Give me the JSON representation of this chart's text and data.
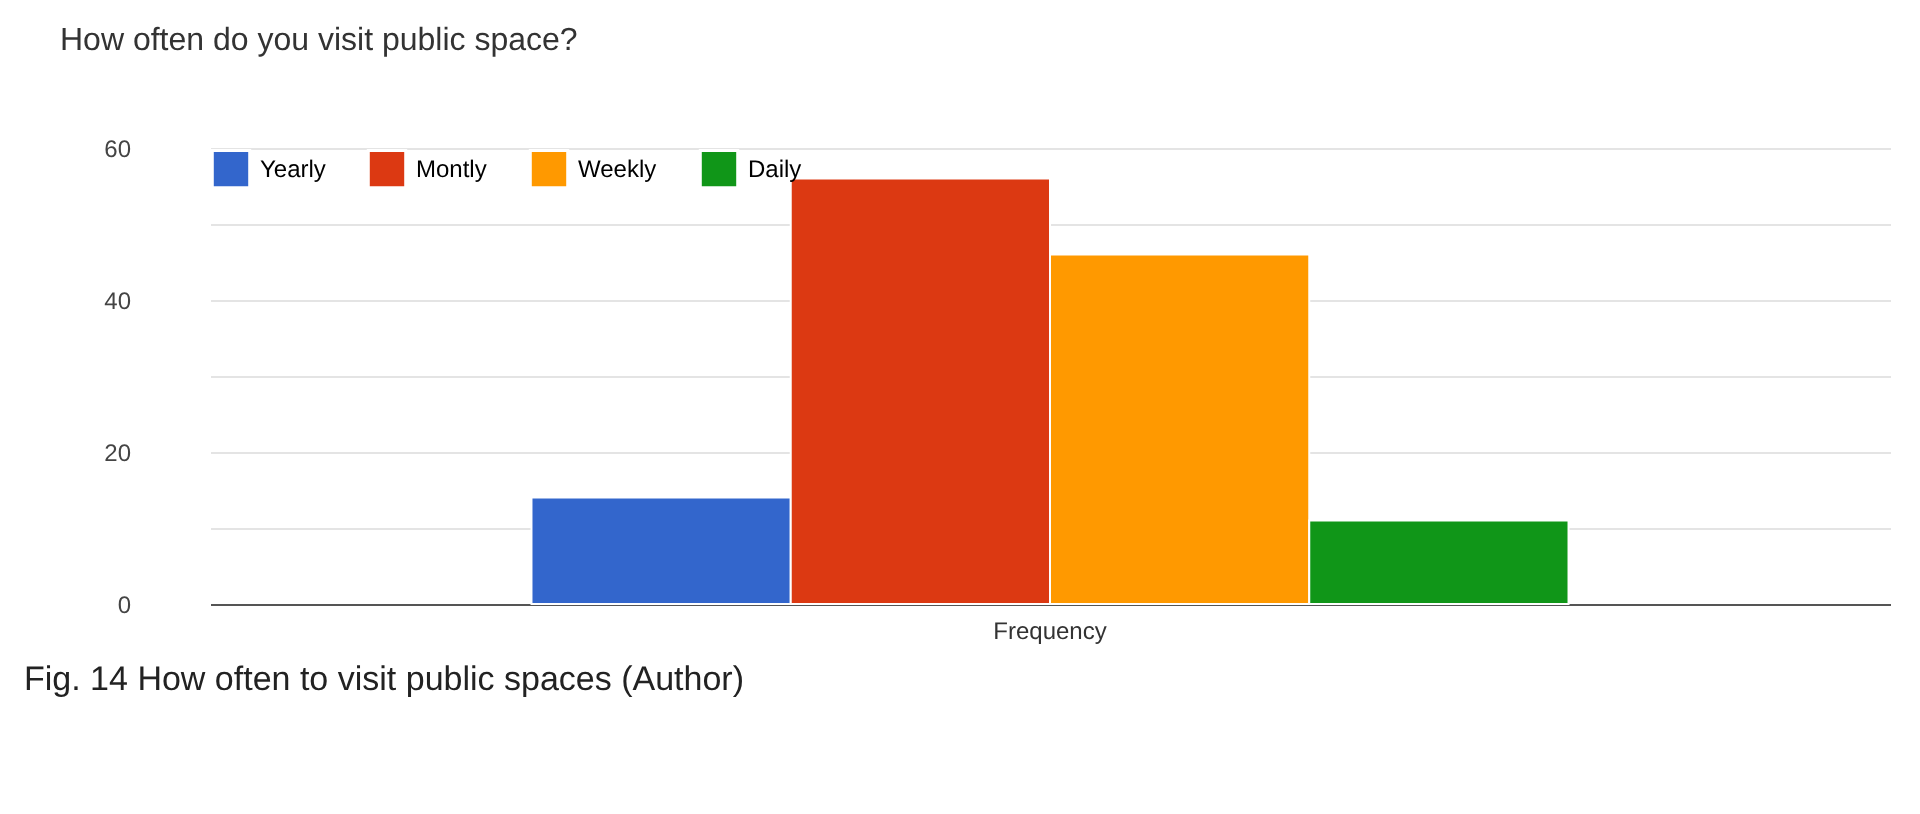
{
  "chart_data": {
    "type": "bar",
    "title": "How often do you visit public space?",
    "categories": [
      "Frequency"
    ],
    "series": [
      {
        "name": "Yearly",
        "color": "#3366cc",
        "values": [
          14
        ]
      },
      {
        "name": "Montly",
        "color": "#dc3912",
        "values": [
          56
        ]
      },
      {
        "name": "Weekly",
        "color": "#ff9900",
        "values": [
          46
        ]
      },
      {
        "name": "Daily",
        "color": "#109618",
        "values": [
          11
        ]
      }
    ],
    "ylim": [
      0,
      60
    ],
    "yticks": [
      0,
      {
        "value": 10,
        "label": null
      },
      20,
      {
        "value": 30,
        "label": null
      },
      40,
      {
        "value": 50,
        "label": null
      },
      60
    ],
    "grid": true,
    "legend": "top left",
    "annotations": [
      "Fig. 14 How often to visit public spaces (Author)"
    ]
  }
}
